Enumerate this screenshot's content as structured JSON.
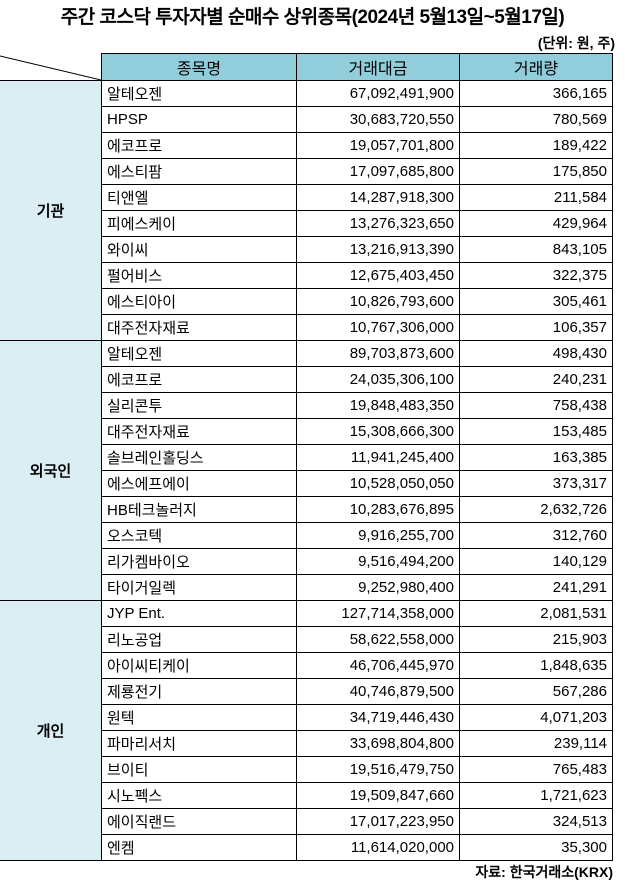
{
  "title": "주간 코스닥 투자자별 순매수 상위종목(2024년 5월13일~5월17일)",
  "unit": "(단위: 원, 주)",
  "headers": {
    "name": "종목명",
    "amount": "거래대금",
    "volume": "거래량"
  },
  "groups": [
    {
      "label": "기관",
      "rows": [
        {
          "name": "알테오젠",
          "amount": "67,092,491,900",
          "volume": "366,165"
        },
        {
          "name": "HPSP",
          "amount": "30,683,720,550",
          "volume": "780,569"
        },
        {
          "name": "에코프로",
          "amount": "19,057,701,800",
          "volume": "189,422"
        },
        {
          "name": "에스티팜",
          "amount": "17,097,685,800",
          "volume": "175,850"
        },
        {
          "name": "티앤엘",
          "amount": "14,287,918,300",
          "volume": "211,584"
        },
        {
          "name": "피에스케이",
          "amount": "13,276,323,650",
          "volume": "429,964"
        },
        {
          "name": "와이씨",
          "amount": "13,216,913,390",
          "volume": "843,105"
        },
        {
          "name": "펄어비스",
          "amount": "12,675,403,450",
          "volume": "322,375"
        },
        {
          "name": "에스티아이",
          "amount": "10,826,793,600",
          "volume": "305,461"
        },
        {
          "name": "대주전자재료",
          "amount": "10,767,306,000",
          "volume": "106,357"
        }
      ]
    },
    {
      "label": "외국인",
      "rows": [
        {
          "name": "알테오젠",
          "amount": "89,703,873,600",
          "volume": "498,430"
        },
        {
          "name": "에코프로",
          "amount": "24,035,306,100",
          "volume": "240,231"
        },
        {
          "name": "실리콘투",
          "amount": "19,848,483,350",
          "volume": "758,438"
        },
        {
          "name": "대주전자재료",
          "amount": "15,308,666,300",
          "volume": "153,485"
        },
        {
          "name": "솔브레인홀딩스",
          "amount": "11,941,245,400",
          "volume": "163,385"
        },
        {
          "name": "에스에프에이",
          "amount": "10,528,050,050",
          "volume": "373,317"
        },
        {
          "name": "HB테크놀러지",
          "amount": "10,283,676,895",
          "volume": "2,632,726"
        },
        {
          "name": "오스코텍",
          "amount": "9,916,255,700",
          "volume": "312,760"
        },
        {
          "name": "리가켐바이오",
          "amount": "9,516,494,200",
          "volume": "140,129"
        },
        {
          "name": "타이거일렉",
          "amount": "9,252,980,400",
          "volume": "241,291"
        }
      ]
    },
    {
      "label": "개인",
      "rows": [
        {
          "name": "JYP Ent.",
          "amount": "127,714,358,000",
          "volume": "2,081,531"
        },
        {
          "name": "리노공업",
          "amount": "58,622,558,000",
          "volume": "215,903"
        },
        {
          "name": "아이씨티케이",
          "amount": "46,706,445,970",
          "volume": "1,848,635"
        },
        {
          "name": "제룡전기",
          "amount": "40,746,879,500",
          "volume": "567,286"
        },
        {
          "name": "원텍",
          "amount": "34,719,446,430",
          "volume": "4,071,203"
        },
        {
          "name": "파마리서치",
          "amount": "33,698,804,800",
          "volume": "239,114"
        },
        {
          "name": "브이티",
          "amount": "19,516,479,750",
          "volume": "765,483"
        },
        {
          "name": "시노펙스",
          "amount": "19,509,847,660",
          "volume": "1,721,623"
        },
        {
          "name": "에이직랜드",
          "amount": "17,017,223,950",
          "volume": "324,513"
        },
        {
          "name": "엔켐",
          "amount": "11,614,020,000",
          "volume": "35,300"
        }
      ]
    }
  ],
  "source": "자료: 한국거래소(KRX)"
}
